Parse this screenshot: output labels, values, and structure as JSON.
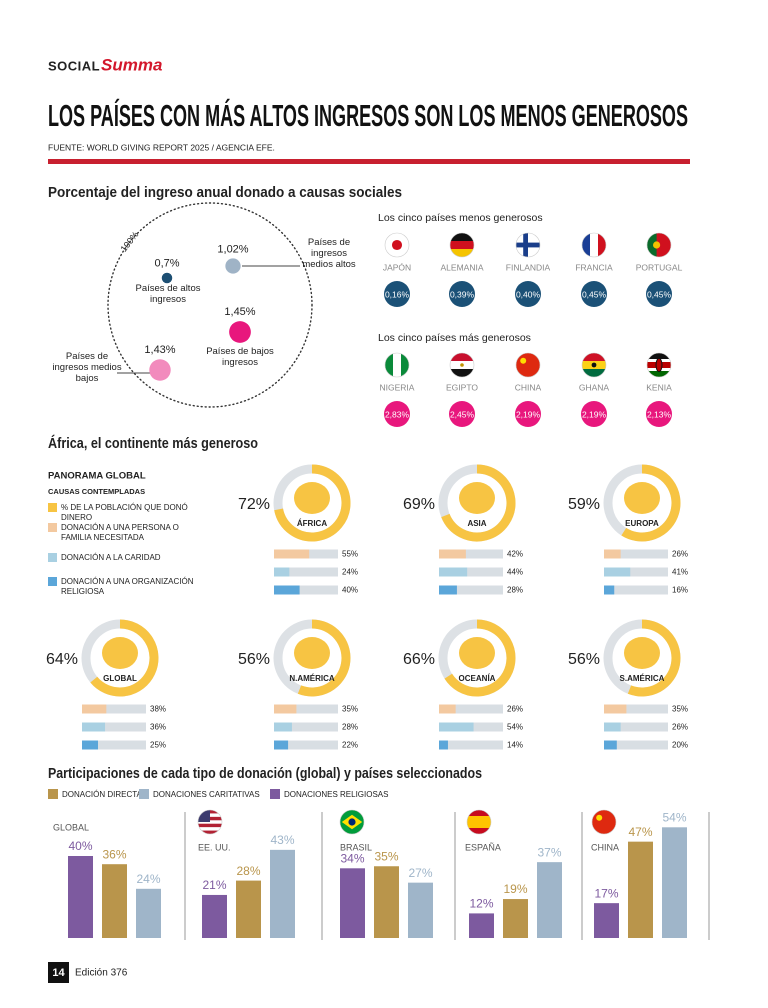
{
  "header": {
    "brand_left": "SOCIAL",
    "brand_right": "Summa",
    "title": "LOS PAÍSES CON MÁS ALTOS INGRESOS SON LOS MENOS GENEROSOS",
    "source": "FUENTE: WORLD GIVING REPORT 2025 / AGENCIA EFE."
  },
  "chart_data": [
    {
      "type": "bubble",
      "title": "Porcentaje del ingreso anual donado a causas sociales",
      "circle_label": "100%",
      "categories": [
        "Países de altos ingresos",
        "Países de ingresos medios altos",
        "Países de bajos ingresos",
        "Países de ingresos medios bajos"
      ],
      "values": [
        0.7,
        1.02,
        1.45,
        1.43
      ],
      "value_labels": [
        "0,7%",
        "1,02%",
        "1,45%",
        "1,43%"
      ],
      "colors": [
        "#1d4f73",
        "#9fb3c6",
        "#e8177d",
        "#f28bbd"
      ]
    },
    {
      "type": "badge",
      "title": "Los cinco países menos generosos",
      "categories": [
        "JAPÓN",
        "ALEMANIA",
        "FINLANDIA",
        "FRANCIA",
        "PORTUGAL"
      ],
      "values": [
        0.16,
        0.39,
        0.4,
        0.45,
        0.45
      ],
      "value_labels": [
        "0,16%",
        "0,39%",
        "0,40%",
        "0,45%",
        "0,45%"
      ],
      "color": "#1b5177"
    },
    {
      "type": "badge",
      "title": "Los cinco países más generosos",
      "categories": [
        "NIGERIA",
        "EGIPTO",
        "CHINA",
        "GHANA",
        "KENIA"
      ],
      "values": [
        2.83,
        2.45,
        2.19,
        2.19,
        2.13
      ],
      "value_labels": [
        "2,83%",
        "2,45%",
        "2,19%",
        "2,19%",
        "2,13%"
      ],
      "color": "#e8177d"
    },
    {
      "type": "donut",
      "title": "África, el continente más generoso",
      "subtitle": "PANORAMA GLOBAL",
      "legend_title": "CAUSAS CONTEMPLADAS",
      "categories": [
        "ÁFRICA",
        "ASIA",
        "EUROPA",
        "GLOBAL",
        "N.AMÉRICA",
        "OCEANÍA",
        "S.AMÉRICA"
      ],
      "series": [
        {
          "name": "% DE LA POBLACIÓN QUE DONÓ DINERO",
          "color": "#f7c443",
          "values": [
            72,
            69,
            59,
            64,
            56,
            66,
            56
          ],
          "value_labels": [
            "72%",
            "69%",
            "59%",
            "64%",
            "56%",
            "66%",
            "56%"
          ]
        },
        {
          "name": "DONACIÓN A UNA PERSONA O FAMILIA NECESITADA",
          "color": "#f3c9a0",
          "values": [
            55,
            42,
            26,
            38,
            35,
            26,
            35
          ],
          "value_labels": [
            "55%",
            "42%",
            "26%",
            "38%",
            "35%",
            "26%",
            "35%"
          ]
        },
        {
          "name": "DONACIÓN A LA CARIDAD",
          "color": "#a9d0e2",
          "values": [
            24,
            44,
            41,
            36,
            28,
            54,
            26
          ],
          "value_labels": [
            "24%",
            "44%",
            "41%",
            "36%",
            "28%",
            "54%",
            "26%"
          ]
        },
        {
          "name": "DONACIÓN A UNA ORGANIZACIÓN RELIGIOSA",
          "color": "#5ba6d9",
          "values": [
            40,
            28,
            16,
            25,
            22,
            14,
            20
          ],
          "value_labels": [
            "40%",
            "28%",
            "16%",
            "25%",
            "22%",
            "14%",
            "20%"
          ]
        }
      ]
    },
    {
      "type": "bar",
      "title": "Participaciones de cada tipo de donación (global) y países seleccionados",
      "categories": [
        "GLOBAL",
        "EE. UU.",
        "BRASIL",
        "ESPAÑA",
        "CHINA"
      ],
      "series": [
        {
          "name": "DONACIÓN DIRECTA",
          "color": "#b9954b",
          "values": [
            36,
            28,
            35,
            19,
            47
          ],
          "value_labels": [
            "36%",
            "28%",
            "35%",
            "19%",
            "47%"
          ]
        },
        {
          "name": "DONACIONES CARITATIVAS",
          "color": "#9fb5c9",
          "values": [
            24,
            43,
            27,
            37,
            54
          ],
          "value_labels": [
            "24%",
            "43%",
            "27%",
            "37%",
            "54%"
          ]
        },
        {
          "name": "DONACIONES RELIGIOSAS",
          "color": "#7d5a9f",
          "values": [
            40,
            21,
            34,
            12,
            17
          ],
          "value_labels": [
            "40%",
            "21%",
            "34%",
            "12%",
            "17%"
          ]
        }
      ]
    }
  ],
  "footer": {
    "page": "14",
    "edition": "Edición 376"
  }
}
